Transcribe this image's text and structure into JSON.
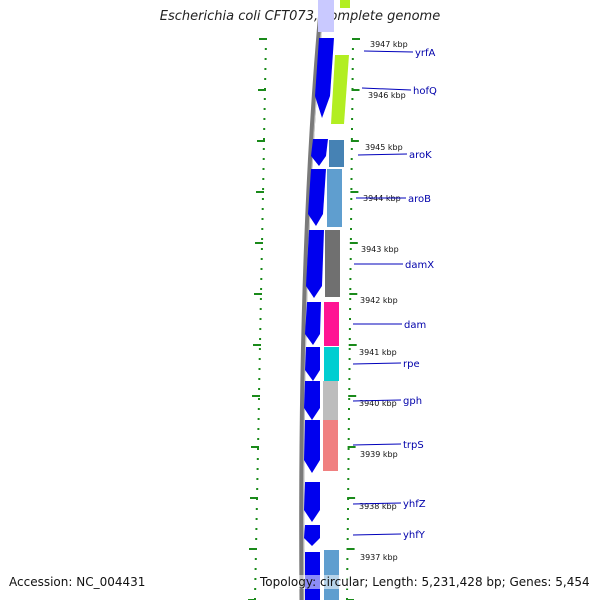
{
  "title": "Escherichia coli CFT073, complete genome",
  "accession": "Accession: NC_004431",
  "topology": "Topology: circular; Length: 5,231,428 bp; Genes: 5,454",
  "colors": {
    "strand_arrow": "#0000ee",
    "backbone": "#808080",
    "tick_green": "#1a8a1a",
    "label_line": "#0000bb",
    "label_text": "#0000aa"
  },
  "kbp_labels": [
    "3947 kbp",
    "3946 kbp",
    "3945 kbp",
    "3944 kbp",
    "3943 kbp",
    "3942 kbp",
    "3941 kbp",
    "3940 kbp",
    "3939 kbp",
    "3938 kbp",
    "3937 kbp"
  ],
  "genes": [
    {
      "name": "yrfA",
      "color": "#b2ee22"
    },
    {
      "name": "hofQ",
      "color": "#b2ee22"
    },
    {
      "name": "aroK",
      "color": "#4682b4"
    },
    {
      "name": "aroB",
      "color": "#5f9ecf"
    },
    {
      "name": "damX",
      "color": "#707070"
    },
    {
      "name": "dam",
      "color": "#ff1493"
    },
    {
      "name": "rpe",
      "color": "#00ced1"
    },
    {
      "name": "gph",
      "color": "#bdbdbd"
    },
    {
      "name": "trpS",
      "color": "#f08080"
    },
    {
      "name": "yhfZ",
      "color": "#0000ee"
    },
    {
      "name": "yhfY",
      "color": "#0000ee"
    }
  ]
}
